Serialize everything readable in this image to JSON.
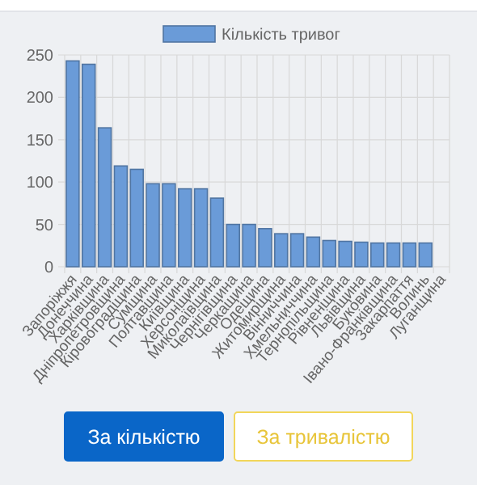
{
  "chart_data": {
    "type": "bar",
    "categories": [
      "Запоріжжя",
      "Донеччина",
      "Харківщина",
      "Дніпропетровщина",
      "Кіровоградщина",
      "Сумщина",
      "Полтавщина",
      "Київщина",
      "Херсонщина",
      "Миколаївщина",
      "Чернігівщина",
      "Черкащина",
      "Одещина",
      "Житомирщина",
      "Вінниччина",
      "Хмельниччина",
      "Тернопільщина",
      "Рівненщина",
      "Львівщина",
      "Буковина",
      "Івано-Франківщина",
      "Закарпаття",
      "Волинь",
      "Луганщина"
    ],
    "series": [
      {
        "name": "Кількість тривог",
        "color": "#6a9bd8",
        "values": [
          243,
          239,
          164,
          119,
          115,
          98,
          98,
          92,
          92,
          81,
          50,
          50,
          45,
          39,
          39,
          35,
          31,
          30,
          29,
          28,
          28,
          28,
          28,
          0
        ]
      }
    ],
    "ylim": [
      0,
      250
    ],
    "yticks": [
      0,
      50,
      100,
      150,
      200,
      250
    ],
    "grid": true,
    "legend": "top",
    "annotations": [
      "За кількістю",
      "За тривалістю"
    ]
  }
}
